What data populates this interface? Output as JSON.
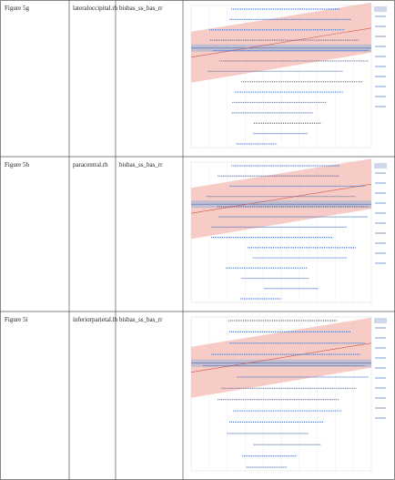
{
  "table": {
    "rows": [
      [
        "Figure 5g",
        "lateraloccipital.rh",
        "bisbas_ss_bas_rr"
      ],
      [
        "Figure 5h",
        "paracentral.rh",
        "bisbas_ss_bas_rr"
      ],
      [
        "Figure 5i",
        "inferiorparietal.lh",
        "bisbas_ss_bas_rr"
      ]
    ]
  }
}
